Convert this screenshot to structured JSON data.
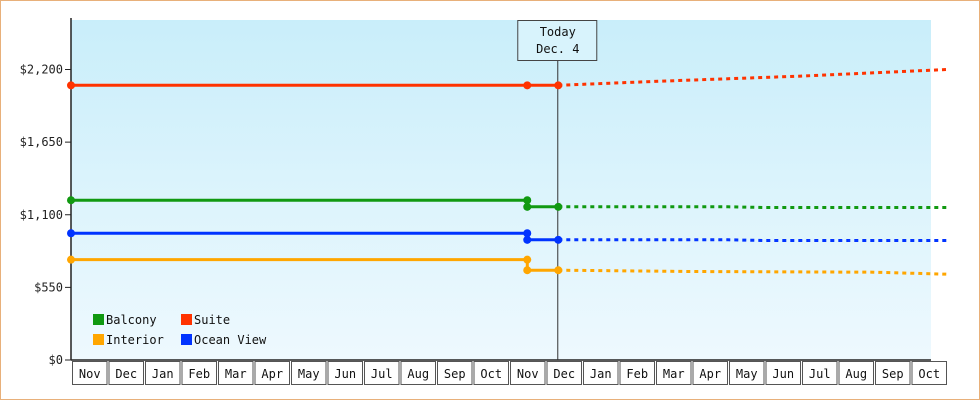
{
  "chart_data": {
    "type": "line",
    "title": "",
    "xlabel": "",
    "ylabel": "",
    "y_ticks": [
      {
        "value": 0,
        "label": "$0"
      },
      {
        "value": 550,
        "label": "$550"
      },
      {
        "value": 1100,
        "label": "$1,100"
      },
      {
        "value": 1650,
        "label": "$1,650"
      },
      {
        "value": 2200,
        "label": "$2,200"
      }
    ],
    "ylim": [
      0,
      2200
    ],
    "x_categories": [
      "Nov",
      "Dec",
      "Jan",
      "Feb",
      "Mar",
      "Apr",
      "May",
      "Jun",
      "Jul",
      "Aug",
      "Sep",
      "Oct",
      "Nov",
      "Dec",
      "Jan",
      "Feb",
      "Mar",
      "Apr",
      "May",
      "Jun",
      "Jul",
      "Aug",
      "Sep",
      "Oct"
    ],
    "today_marker": {
      "line1": "Today",
      "line2": "Dec. 4",
      "x": 13.35
    },
    "legend_placement": "bottom-left",
    "grid": false,
    "colors": {
      "plot_bg_top": "#c9eefa",
      "plot_bg_bottom": "#eef9fe",
      "frame_border": "#e8b07a"
    },
    "series": [
      {
        "name": "Balcony",
        "color": "#119911",
        "historical": [
          [
            0,
            1210
          ],
          [
            12.5,
            1210
          ],
          [
            12.5,
            1160
          ],
          [
            13.35,
            1160
          ]
        ],
        "historical_markers": [
          0,
          12.5,
          12.5,
          13.35
        ],
        "forecast": [
          [
            13.35,
            1160
          ],
          [
            18,
            1160
          ],
          [
            19,
            1155
          ],
          [
            24,
            1155
          ]
        ]
      },
      {
        "name": "Suite",
        "color": "#ff3300",
        "historical": [
          [
            0,
            2080
          ],
          [
            12.5,
            2080
          ],
          [
            13.35,
            2080
          ]
        ],
        "historical_markers": [
          0,
          12.5,
          13.35
        ],
        "forecast": [
          [
            13.35,
            2080
          ],
          [
            16,
            2110
          ],
          [
            20,
            2150
          ],
          [
            24,
            2200
          ]
        ]
      },
      {
        "name": "Interior",
        "color": "#ffa600",
        "historical": [
          [
            0,
            760
          ],
          [
            12.5,
            760
          ],
          [
            12.5,
            680
          ],
          [
            13.35,
            680
          ]
        ],
        "historical_markers": [
          0,
          12.5,
          12.5,
          13.35
        ],
        "forecast": [
          [
            13.35,
            680
          ],
          [
            17,
            670
          ],
          [
            22,
            665
          ],
          [
            24,
            650
          ]
        ]
      },
      {
        "name": "Ocean View",
        "color": "#0033ff",
        "historical": [
          [
            0,
            960
          ],
          [
            12.5,
            960
          ],
          [
            12.5,
            910
          ],
          [
            13.35,
            910
          ]
        ],
        "historical_markers": [
          0,
          12.5,
          12.5,
          13.35
        ],
        "forecast": [
          [
            13.35,
            910
          ],
          [
            18,
            910
          ],
          [
            19,
            905
          ],
          [
            24,
            905
          ]
        ]
      }
    ],
    "legend": [
      {
        "name": "Balcony",
        "color": "#119911"
      },
      {
        "name": "Suite",
        "color": "#ff3300"
      },
      {
        "name": "Interior",
        "color": "#ffa600"
      },
      {
        "name": "Ocean View",
        "color": "#0033ff"
      }
    ]
  }
}
